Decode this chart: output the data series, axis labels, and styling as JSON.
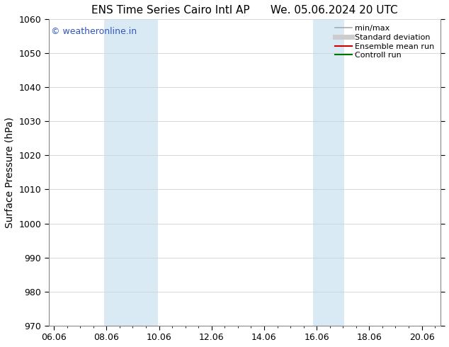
{
  "title_left": "ENS Time Series Cairo Intl AP",
  "title_right": "We. 05.06.2024 20 UTC",
  "ylabel": "Surface Pressure (hPa)",
  "ylim": [
    970,
    1060
  ],
  "yticks": [
    970,
    980,
    990,
    1000,
    1010,
    1020,
    1030,
    1040,
    1050,
    1060
  ],
  "xtick_labels": [
    "06.06",
    "08.06",
    "10.06",
    "12.06",
    "14.06",
    "16.06",
    "18.06",
    "20.06"
  ],
  "xtick_positions": [
    0,
    2,
    4,
    6,
    8,
    10,
    12,
    14
  ],
  "xlim_start": -0.2,
  "xlim_end": 14.7,
  "shaded_bands": [
    {
      "x_start": 1.9,
      "x_end": 3.95
    },
    {
      "x_start": 9.85,
      "x_end": 11.05
    }
  ],
  "shaded_color": "#daeaf5",
  "watermark_text": "© weatheronline.in",
  "watermark_color": "#3355bb",
  "legend_items": [
    {
      "label": "min/max",
      "color": "#aaaaaa",
      "lw": 1.2,
      "ls": "-"
    },
    {
      "label": "Standard deviation",
      "color": "#cccccc",
      "lw": 5,
      "ls": "-"
    },
    {
      "label": "Ensemble mean run",
      "color": "#cc0000",
      "lw": 1.5,
      "ls": "-"
    },
    {
      "label": "Controll run",
      "color": "#007700",
      "lw": 1.5,
      "ls": "-"
    }
  ],
  "background_color": "#ffffff",
  "grid_color": "#cccccc",
  "title_fontsize": 11,
  "ylabel_fontsize": 10,
  "tick_fontsize": 9,
  "watermark_fontsize": 9,
  "legend_fontsize": 8
}
